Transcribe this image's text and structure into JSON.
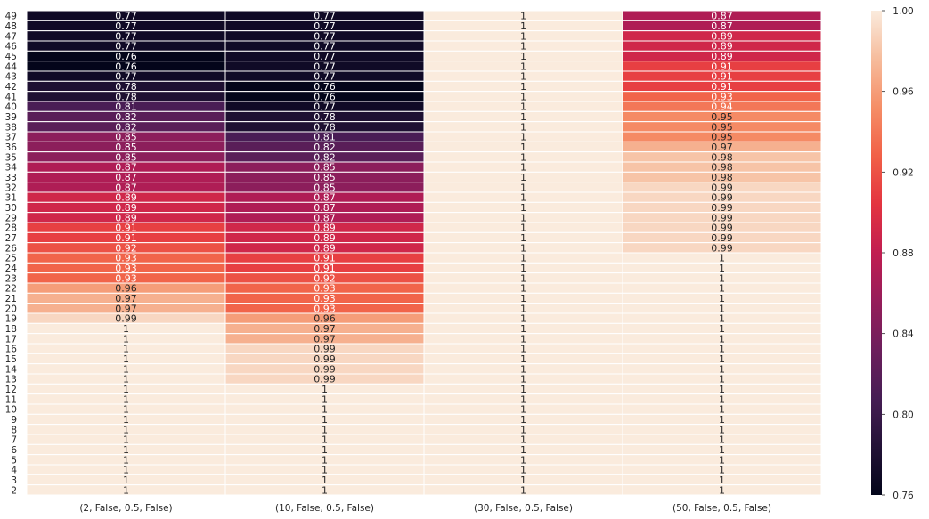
{
  "chart_data": {
    "type": "heatmap",
    "title": "",
    "xlabel": "",
    "ylabel": "",
    "x_categories": [
      "(2, False, 0.5, False)",
      "(10, False, 0.5, False)",
      "(30, False, 0.5, False)",
      "(50, False, 0.5, False)"
    ],
    "y_categories": [
      "49",
      "48",
      "47",
      "46",
      "45",
      "44",
      "43",
      "42",
      "41",
      "40",
      "39",
      "38",
      "37",
      "36",
      "35",
      "34",
      "33",
      "32",
      "31",
      "30",
      "29",
      "28",
      "27",
      "26",
      "25",
      "24",
      "23",
      "22",
      "21",
      "20",
      "19",
      "18",
      "17",
      "16",
      "15",
      "14",
      "13",
      "12",
      "11",
      "10",
      "9",
      "8",
      "7",
      "6",
      "5",
      "4",
      "3",
      "2"
    ],
    "values": [
      [
        0.77,
        0.77,
        1,
        0.87
      ],
      [
        0.77,
        0.77,
        1,
        0.87
      ],
      [
        0.77,
        0.77,
        1,
        0.89
      ],
      [
        0.77,
        0.77,
        1,
        0.89
      ],
      [
        0.76,
        0.77,
        1,
        0.89
      ],
      [
        0.76,
        0.77,
        1,
        0.91
      ],
      [
        0.77,
        0.77,
        1,
        0.91
      ],
      [
        0.78,
        0.76,
        1,
        0.91
      ],
      [
        0.78,
        0.76,
        1,
        0.93
      ],
      [
        0.81,
        0.77,
        1,
        0.94
      ],
      [
        0.82,
        0.78,
        1,
        0.95
      ],
      [
        0.82,
        0.78,
        1,
        0.95
      ],
      [
        0.85,
        0.81,
        1,
        0.95
      ],
      [
        0.85,
        0.82,
        1,
        0.97
      ],
      [
        0.85,
        0.82,
        1,
        0.98
      ],
      [
        0.87,
        0.85,
        1,
        0.98
      ],
      [
        0.87,
        0.85,
        1,
        0.98
      ],
      [
        0.87,
        0.85,
        1,
        0.99
      ],
      [
        0.89,
        0.87,
        1,
        0.99
      ],
      [
        0.89,
        0.87,
        1,
        0.99
      ],
      [
        0.89,
        0.87,
        1,
        0.99
      ],
      [
        0.91,
        0.89,
        1,
        0.99
      ],
      [
        0.91,
        0.89,
        1,
        0.99
      ],
      [
        0.92,
        0.89,
        1,
        0.99
      ],
      [
        0.93,
        0.91,
        1,
        1
      ],
      [
        0.93,
        0.91,
        1,
        1
      ],
      [
        0.93,
        0.92,
        1,
        1
      ],
      [
        0.96,
        0.93,
        1,
        1
      ],
      [
        0.97,
        0.93,
        1,
        1
      ],
      [
        0.97,
        0.93,
        1,
        1
      ],
      [
        0.99,
        0.96,
        1,
        1
      ],
      [
        1,
        0.97,
        1,
        1
      ],
      [
        1,
        0.97,
        1,
        1
      ],
      [
        1,
        0.99,
        1,
        1
      ],
      [
        1,
        0.99,
        1,
        1
      ],
      [
        1,
        0.99,
        1,
        1
      ],
      [
        1,
        0.99,
        1,
        1
      ],
      [
        1,
        1,
        1,
        1
      ],
      [
        1,
        1,
        1,
        1
      ],
      [
        1,
        1,
        1,
        1
      ],
      [
        1,
        1,
        1,
        1
      ],
      [
        1,
        1,
        1,
        1
      ],
      [
        1,
        1,
        1,
        1
      ],
      [
        1,
        1,
        1,
        1
      ],
      [
        1,
        1,
        1,
        1
      ],
      [
        1,
        1,
        1,
        1
      ],
      [
        1,
        1,
        1,
        1
      ],
      [
        1,
        1,
        1,
        1
      ]
    ],
    "value_labels": [
      [
        "0.77",
        "0.77",
        "1",
        "0.87"
      ],
      [
        "0.77",
        "0.77",
        "1",
        "0.87"
      ],
      [
        "0.77",
        "0.77",
        "1",
        "0.89"
      ],
      [
        "0.77",
        "0.77",
        "1",
        "0.89"
      ],
      [
        "0.76",
        "0.77",
        "1",
        "0.89"
      ],
      [
        "0.76",
        "0.77",
        "1",
        "0.91"
      ],
      [
        "0.77",
        "0.77",
        "1",
        "0.91"
      ],
      [
        "0.78",
        "0.76",
        "1",
        "0.91"
      ],
      [
        "0.78",
        "0.76",
        "1",
        "0.93"
      ],
      [
        "0.81",
        "0.77",
        "1",
        "0.94"
      ],
      [
        "0.82",
        "0.78",
        "1",
        "0.95"
      ],
      [
        "0.82",
        "0.78",
        "1",
        "0.95"
      ],
      [
        "0.85",
        "0.81",
        "1",
        "0.95"
      ],
      [
        "0.85",
        "0.82",
        "1",
        "0.97"
      ],
      [
        "0.85",
        "0.82",
        "1",
        "0.98"
      ],
      [
        "0.87",
        "0.85",
        "1",
        "0.98"
      ],
      [
        "0.87",
        "0.85",
        "1",
        "0.98"
      ],
      [
        "0.87",
        "0.85",
        "1",
        "0.99"
      ],
      [
        "0.89",
        "0.87",
        "1",
        "0.99"
      ],
      [
        "0.89",
        "0.87",
        "1",
        "0.99"
      ],
      [
        "0.89",
        "0.87",
        "1",
        "0.99"
      ],
      [
        "0.91",
        "0.89",
        "1",
        "0.99"
      ],
      [
        "0.91",
        "0.89",
        "1",
        "0.99"
      ],
      [
        "0.92",
        "0.89",
        "1",
        "0.99"
      ],
      [
        "0.93",
        "0.91",
        "1",
        "1"
      ],
      [
        "0.93",
        "0.91",
        "1",
        "1"
      ],
      [
        "0.93",
        "0.92",
        "1",
        "1"
      ],
      [
        "0.96",
        "0.93",
        "1",
        "1"
      ],
      [
        "0.97",
        "0.93",
        "1",
        "1"
      ],
      [
        "0.97",
        "0.93",
        "1",
        "1"
      ],
      [
        "0.99",
        "0.96",
        "1",
        "1"
      ],
      [
        "1",
        "0.97",
        "1",
        "1"
      ],
      [
        "1",
        "0.97",
        "1",
        "1"
      ],
      [
        "1",
        "0.99",
        "1",
        "1"
      ],
      [
        "1",
        "0.99",
        "1",
        "1"
      ],
      [
        "1",
        "0.99",
        "1",
        "1"
      ],
      [
        "1",
        "0.99",
        "1",
        "1"
      ],
      [
        "1",
        "1",
        "1",
        "1"
      ],
      [
        "1",
        "1",
        "1",
        "1"
      ],
      [
        "1",
        "1",
        "1",
        "1"
      ],
      [
        "1",
        "1",
        "1",
        "1"
      ],
      [
        "1",
        "1",
        "1",
        "1"
      ],
      [
        "1",
        "1",
        "1",
        "1"
      ],
      [
        "1",
        "1",
        "1",
        "1"
      ],
      [
        "1",
        "1",
        "1",
        "1"
      ],
      [
        "1",
        "1",
        "1",
        "1"
      ],
      [
        "1",
        "1",
        "1",
        "1"
      ],
      [
        "1",
        "1",
        "1",
        "1"
      ]
    ],
    "colorbar": {
      "vmin": 0.76,
      "vmax": 1.0,
      "ticks": [
        0.76,
        0.8,
        0.84,
        0.88,
        0.92,
        0.96,
        1.0
      ],
      "tick_labels": [
        "0.76",
        "0.80",
        "0.84",
        "0.88",
        "0.92",
        "0.96",
        "1.00"
      ],
      "colormap": "rocket"
    },
    "grid": true,
    "colors": {
      "cell_border": "#ffffff",
      "dark_text": "#262626",
      "light_text": "#ffffff"
    }
  }
}
